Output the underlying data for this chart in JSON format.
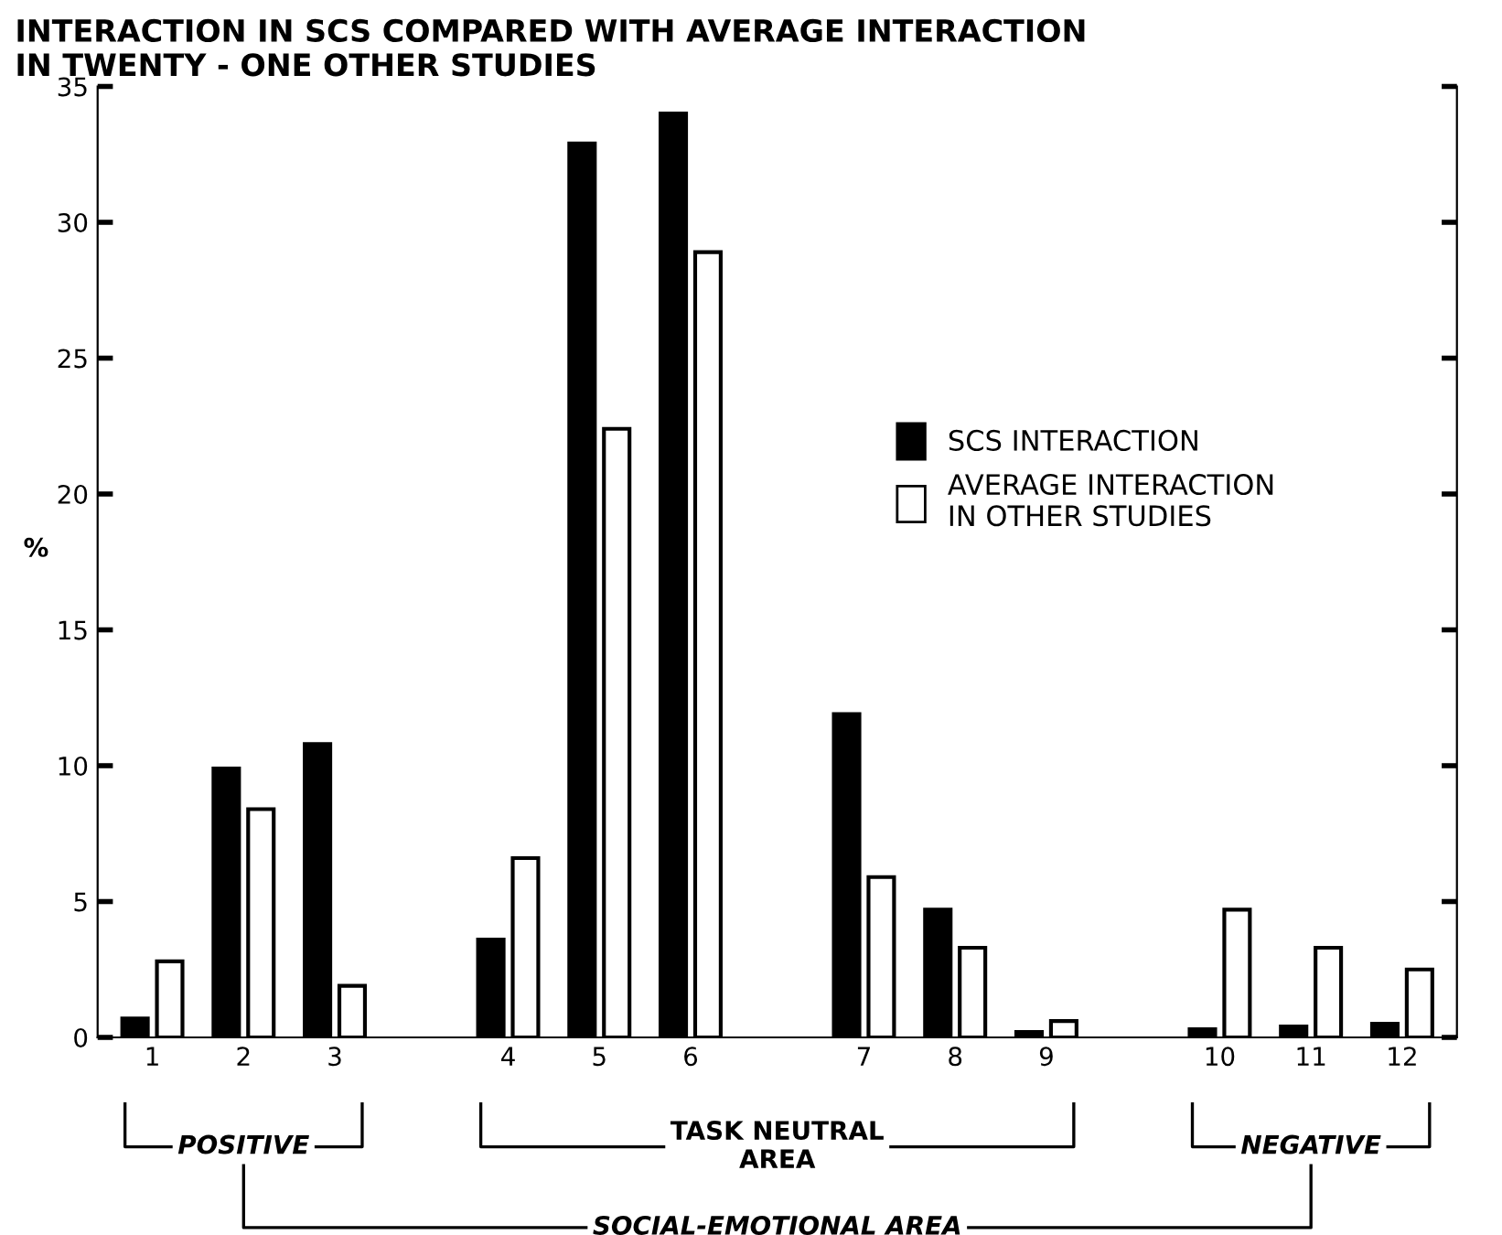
{
  "chart_data": {
    "type": "bar",
    "title": "INTERACTION IN SCS COMPARED WITH AVERAGE INTERACTION\nIN TWENTY - ONE OTHER STUDIES",
    "ylabel": "%",
    "categories": [
      "1",
      "2",
      "3",
      "4",
      "5",
      "6",
      "7",
      "8",
      "9",
      "10",
      "11",
      "12"
    ],
    "series": [
      {
        "name": "SCS INTERACTION",
        "color": "#000000",
        "values": [
          0.7,
          9.9,
          10.8,
          3.6,
          32.9,
          34.0,
          11.9,
          4.7,
          0.2,
          0.3,
          0.4,
          0.5
        ]
      },
      {
        "name": "AVERAGE INTERACTION\nIN OTHER STUDIES",
        "color": "#ffffff",
        "values": [
          2.8,
          8.4,
          1.9,
          6.6,
          22.4,
          28.9,
          5.9,
          3.3,
          0.6,
          4.7,
          3.3,
          2.5
        ]
      }
    ],
    "ylim": [
      0,
      35
    ],
    "yticks": [
      0,
      5,
      10,
      15,
      20,
      25,
      30,
      35
    ],
    "grid": false,
    "legend": "right",
    "annotations": [
      "POSITIVE",
      "TASK NEUTRAL\nAREA",
      "NEGATIVE",
      "SOCIAL-EMOTIONAL AREA"
    ]
  }
}
